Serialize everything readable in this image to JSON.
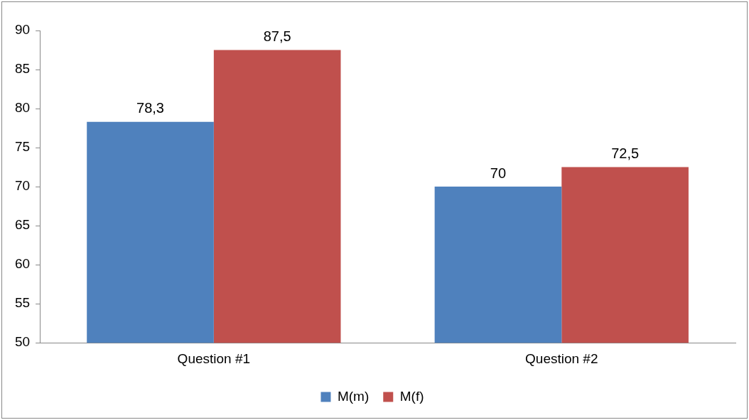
{
  "chart_data": {
    "type": "bar",
    "categories": [
      "Question #1",
      "Question #2"
    ],
    "series": [
      {
        "name": "M(m)",
        "color": "#4f81bd",
        "values": [
          78.3,
          70
        ],
        "value_labels": [
          "78,3",
          "70"
        ]
      },
      {
        "name": "M(f)",
        "color": "#c0504d",
        "values": [
          87.5,
          72.5
        ],
        "value_labels": [
          "87,5",
          "72,5"
        ]
      }
    ],
    "ylim": [
      50,
      90
    ],
    "yticks": [
      50,
      55,
      60,
      65,
      70,
      75,
      80,
      85,
      90
    ],
    "grid": false,
    "legend": "bottom"
  }
}
